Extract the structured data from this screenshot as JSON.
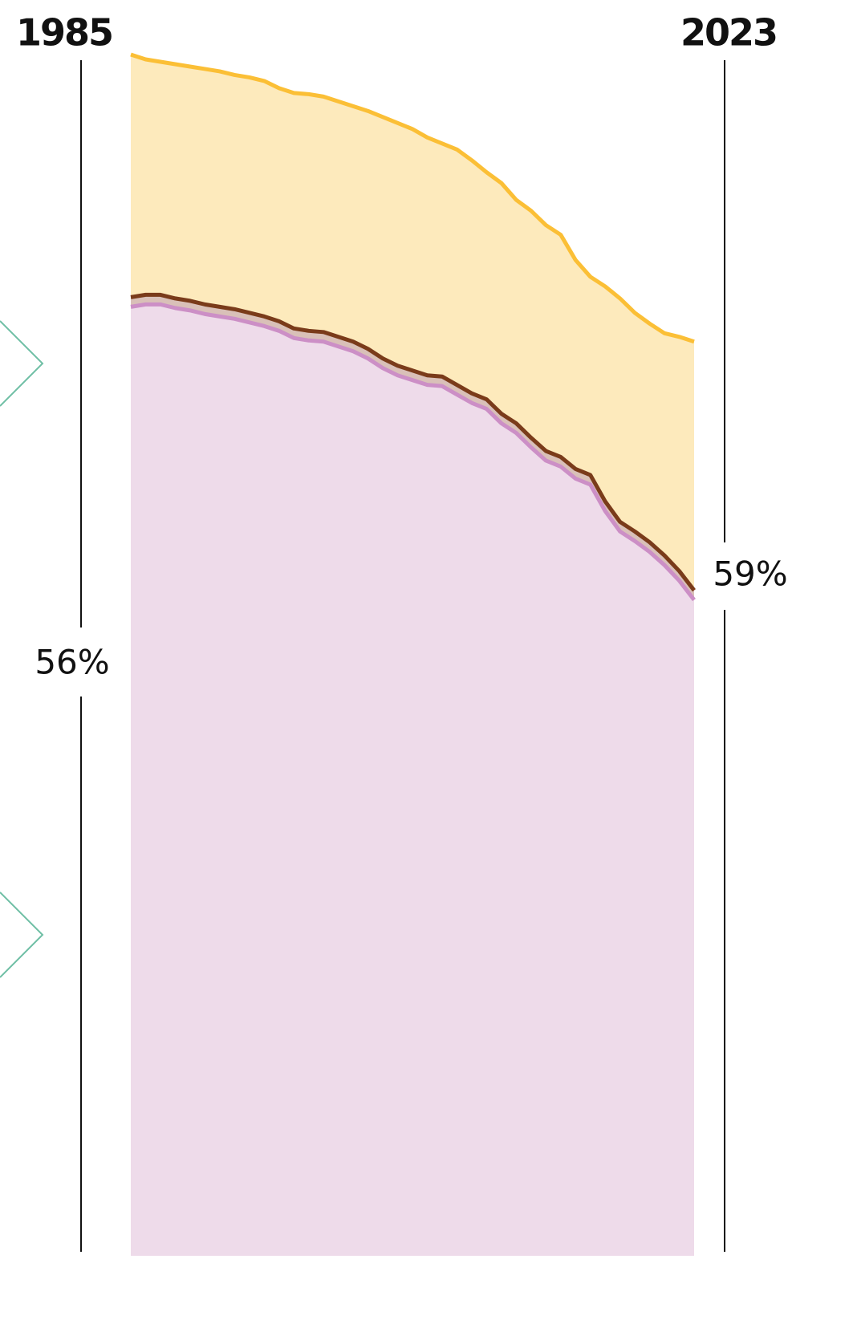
{
  "chart_data": {
    "type": "stacked_area",
    "x": [
      1985,
      1986,
      1987,
      1988,
      1989,
      1990,
      1991,
      1992,
      1993,
      1994,
      1995,
      1996,
      1997,
      1998,
      1999,
      2000,
      2001,
      2002,
      2003,
      2004,
      2005,
      2006,
      2007,
      2008,
      2009,
      2010,
      2011,
      2012,
      2013,
      2014,
      2015,
      2016,
      2017,
      2018,
      2019,
      2020,
      2021,
      2022,
      2023
    ],
    "xlim": [
      1985,
      2023
    ],
    "ylim": [
      0,
      100
    ],
    "series": [
      {
        "color": "#cc8fc6",
        "fill": "#eedbea",
        "values": [
          79.0,
          79.2,
          79.2,
          78.9,
          78.7,
          78.4,
          78.2,
          78.0,
          77.7,
          77.4,
          77.0,
          76.4,
          76.2,
          76.1,
          75.7,
          75.3,
          74.7,
          73.9,
          73.3,
          72.9,
          72.5,
          72.4,
          71.7,
          71.0,
          70.5,
          69.3,
          68.5,
          67.3,
          66.2,
          65.7,
          64.7,
          64.2,
          62.0,
          60.3,
          59.5,
          58.6,
          57.5,
          56.2,
          54.6
        ]
      },
      {
        "color": "#7a3b1a",
        "fill": "#d9c0b8",
        "values": [
          0.8,
          0.8,
          0.8,
          0.8,
          0.8,
          0.8,
          0.8,
          0.8,
          0.8,
          0.8,
          0.8,
          0.8,
          0.8,
          0.8,
          0.8,
          0.8,
          0.8,
          0.8,
          0.8,
          0.8,
          0.8,
          0.8,
          0.8,
          0.8,
          0.8,
          0.8,
          0.8,
          0.8,
          0.8,
          0.8,
          0.8,
          0.8,
          0.8,
          0.8,
          0.8,
          0.8,
          0.8,
          0.8,
          0.8
        ]
      },
      {
        "color": "#fbbf36",
        "fill": "#fdeabc",
        "values": [
          20.2,
          19.6,
          19.4,
          19.5,
          19.5,
          19.6,
          19.6,
          19.5,
          19.6,
          19.6,
          19.4,
          19.6,
          19.7,
          19.6,
          19.6,
          19.6,
          19.8,
          20.1,
          20.2,
          20.1,
          19.8,
          19.4,
          19.6,
          19.4,
          18.9,
          19.2,
          18.6,
          18.9,
          18.8,
          18.5,
          17.4,
          16.5,
          17.9,
          18.6,
          18.2,
          18.2,
          18.5,
          19.5,
          20.7
        ]
      }
    ],
    "annotations": [
      "56%",
      "59%"
    ]
  }
}
